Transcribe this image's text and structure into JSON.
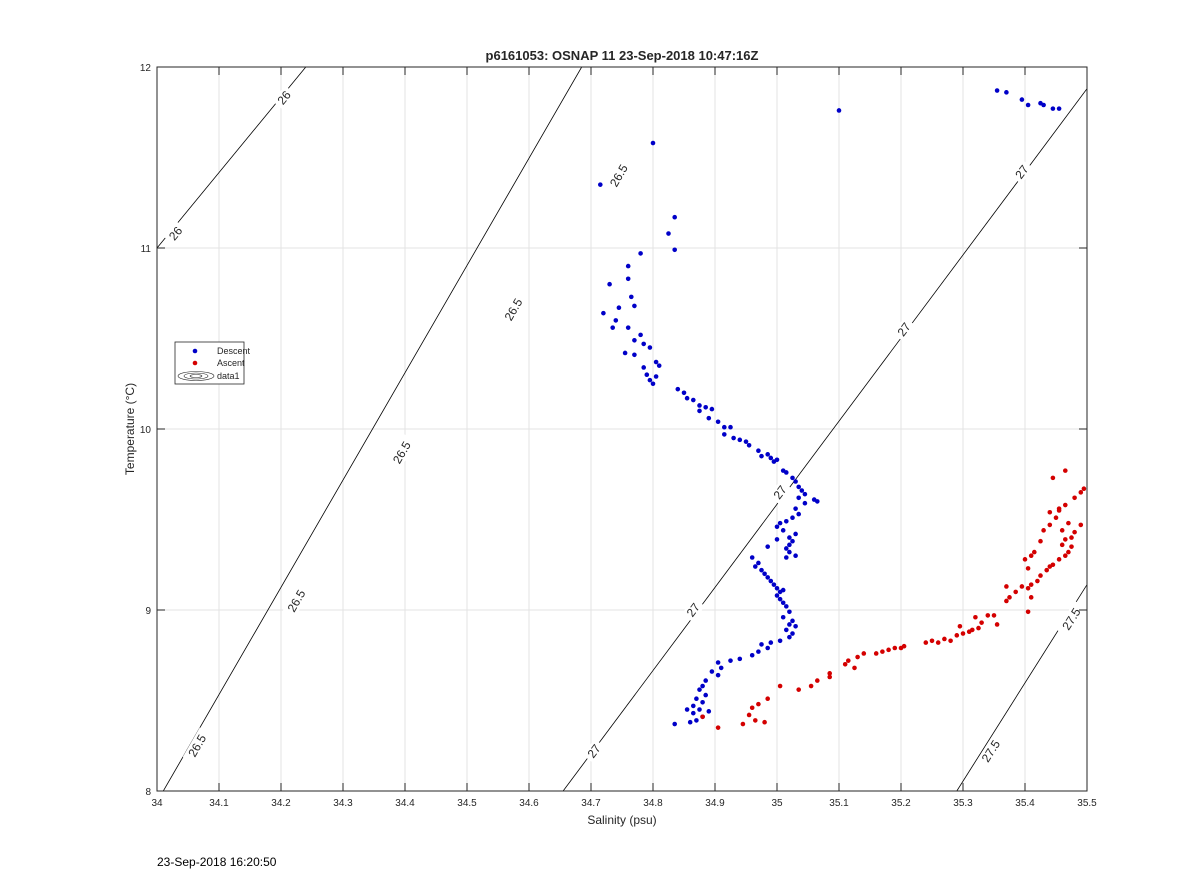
{
  "window_title": "p6161053: OSNAP 11 23-Sep-2018 10:47:16Z",
  "footer_timestamp": "23-Sep-2018 16:20:50",
  "chart_data": {
    "type": "scatter",
    "title": "p6161053: OSNAP 11 23-Sep-2018 10:47:16Z",
    "xlabel": "Salinity (psu)",
    "ylabel": "Temperature (°C)",
    "xlim": [
      34,
      35.5
    ],
    "ylim": [
      8,
      12
    ],
    "xticks": [
      "34",
      "34.1",
      "34.2",
      "34.3",
      "34.4",
      "34.5",
      "34.6",
      "34.7",
      "34.8",
      "34.9",
      "35",
      "35.1",
      "35.2",
      "35.3",
      "35.4",
      "35.5"
    ],
    "yticks": [
      "8",
      "9",
      "10",
      "11",
      "12"
    ],
    "grid": true,
    "legend_position": "left",
    "legend": [
      {
        "label": "Descent",
        "color": "#0000c8",
        "marker": "dot"
      },
      {
        "label": "Ascent",
        "color": "#d40000",
        "marker": "dot"
      },
      {
        "label": "data1",
        "marker": "contour"
      }
    ],
    "density_contours": {
      "levels": [
        "26",
        "26.5",
        "27",
        "27.5"
      ],
      "color": "#000000",
      "lines": [
        {
          "level": "26",
          "p1": [
            34.0,
            11.0
          ],
          "p2": [
            34.24,
            12.0
          ],
          "labels": [
            [
              34.03,
              11.08
            ],
            [
              34.205,
              11.83
            ]
          ]
        },
        {
          "level": "26.5",
          "p1": [
            34.0,
            7.94
          ],
          "p2": [
            34.685,
            12.0
          ],
          "labels": [
            [
              34.065,
              8.25
            ],
            [
              34.225,
              9.05
            ],
            [
              34.395,
              9.87
            ],
            [
              34.575,
              10.66
            ],
            [
              34.745,
              11.4
            ]
          ]
        },
        {
          "level": "27",
          "p1": [
            34.655,
            8.0
          ],
          "p2": [
            35.5,
            11.88
          ],
          "labels": [
            [
              34.705,
              8.22
            ],
            [
              34.865,
              9.0
            ],
            [
              35.005,
              9.65
            ],
            [
              35.205,
              10.55
            ],
            [
              35.395,
              11.42
            ]
          ]
        },
        {
          "level": "27.5",
          "p1": [
            35.29,
            8.0
          ],
          "p2": [
            35.5,
            9.14
          ],
          "labels": [
            [
              35.345,
              8.22
            ],
            [
              35.475,
              8.95
            ]
          ]
        }
      ]
    },
    "series": [
      {
        "name": "Descent",
        "color": "#0000c8",
        "points": [
          [
            35.355,
            11.87
          ],
          [
            35.37,
            11.86
          ],
          [
            35.395,
            11.82
          ],
          [
            35.405,
            11.79
          ],
          [
            35.425,
            11.8
          ],
          [
            35.43,
            11.79
          ],
          [
            35.445,
            11.77
          ],
          [
            35.455,
            11.77
          ],
          [
            35.1,
            11.76
          ],
          [
            34.8,
            11.58
          ],
          [
            34.715,
            11.35
          ],
          [
            34.835,
            11.17
          ],
          [
            34.825,
            11.08
          ],
          [
            34.835,
            10.99
          ],
          [
            34.78,
            10.97
          ],
          [
            34.76,
            10.9
          ],
          [
            34.76,
            10.83
          ],
          [
            34.73,
            10.8
          ],
          [
            34.765,
            10.73
          ],
          [
            34.77,
            10.68
          ],
          [
            34.745,
            10.67
          ],
          [
            34.72,
            10.64
          ],
          [
            34.74,
            10.6
          ],
          [
            34.76,
            10.56
          ],
          [
            34.735,
            10.56
          ],
          [
            34.78,
            10.52
          ],
          [
            34.77,
            10.49
          ],
          [
            34.785,
            10.47
          ],
          [
            34.795,
            10.45
          ],
          [
            34.755,
            10.42
          ],
          [
            34.77,
            10.41
          ],
          [
            34.805,
            10.37
          ],
          [
            34.81,
            10.35
          ],
          [
            34.785,
            10.34
          ],
          [
            34.79,
            10.3
          ],
          [
            34.805,
            10.29
          ],
          [
            34.795,
            10.27
          ],
          [
            34.8,
            10.25
          ],
          [
            34.84,
            10.22
          ],
          [
            34.85,
            10.2
          ],
          [
            34.855,
            10.17
          ],
          [
            34.865,
            10.16
          ],
          [
            34.875,
            10.13
          ],
          [
            34.885,
            10.12
          ],
          [
            34.895,
            10.11
          ],
          [
            34.875,
            10.1
          ],
          [
            34.89,
            10.06
          ],
          [
            34.905,
            10.04
          ],
          [
            34.915,
            10.01
          ],
          [
            34.925,
            10.01
          ],
          [
            34.915,
            9.97
          ],
          [
            34.93,
            9.95
          ],
          [
            34.94,
            9.94
          ],
          [
            34.95,
            9.93
          ],
          [
            34.955,
            9.91
          ],
          [
            34.97,
            9.88
          ],
          [
            34.985,
            9.86
          ],
          [
            34.975,
            9.85
          ],
          [
            34.99,
            9.84
          ],
          [
            35.0,
            9.83
          ],
          [
            34.995,
            9.82
          ],
          [
            35.01,
            9.77
          ],
          [
            35.015,
            9.76
          ],
          [
            35.025,
            9.73
          ],
          [
            35.03,
            9.71
          ],
          [
            35.035,
            9.68
          ],
          [
            35.04,
            9.66
          ],
          [
            35.045,
            9.64
          ],
          [
            35.035,
            9.62
          ],
          [
            35.06,
            9.61
          ],
          [
            35.065,
            9.6
          ],
          [
            35.045,
            9.59
          ],
          [
            35.03,
            9.56
          ],
          [
            35.035,
            9.53
          ],
          [
            35.025,
            9.51
          ],
          [
            35.015,
            9.49
          ],
          [
            35.005,
            9.48
          ],
          [
            35.0,
            9.46
          ],
          [
            35.01,
            9.44
          ],
          [
            35.03,
            9.42
          ],
          [
            35.02,
            9.4
          ],
          [
            35.0,
            9.39
          ],
          [
            35.025,
            9.38
          ],
          [
            35.02,
            9.36
          ],
          [
            35.015,
            9.34
          ],
          [
            34.985,
            9.35
          ],
          [
            35.02,
            9.32
          ],
          [
            35.03,
            9.3
          ],
          [
            35.015,
            9.29
          ],
          [
            34.96,
            9.29
          ],
          [
            34.97,
            9.26
          ],
          [
            34.965,
            9.24
          ],
          [
            34.975,
            9.22
          ],
          [
            34.98,
            9.2
          ],
          [
            34.985,
            9.18
          ],
          [
            34.99,
            9.16
          ],
          [
            34.995,
            9.14
          ],
          [
            35.0,
            9.12
          ],
          [
            35.01,
            9.11
          ],
          [
            35.005,
            9.1
          ],
          [
            35.0,
            9.08
          ],
          [
            35.005,
            9.06
          ],
          [
            35.01,
            9.04
          ],
          [
            35.015,
            9.02
          ],
          [
            35.02,
            8.99
          ],
          [
            35.01,
            8.96
          ],
          [
            35.025,
            8.94
          ],
          [
            35.02,
            8.92
          ],
          [
            35.03,
            8.91
          ],
          [
            35.015,
            8.89
          ],
          [
            35.025,
            8.87
          ],
          [
            35.02,
            8.85
          ],
          [
            35.005,
            8.83
          ],
          [
            34.99,
            8.82
          ],
          [
            34.975,
            8.81
          ],
          [
            34.985,
            8.79
          ],
          [
            34.97,
            8.77
          ],
          [
            34.96,
            8.75
          ],
          [
            34.94,
            8.73
          ],
          [
            34.925,
            8.72
          ],
          [
            34.905,
            8.71
          ],
          [
            34.91,
            8.68
          ],
          [
            34.895,
            8.66
          ],
          [
            34.905,
            8.64
          ],
          [
            34.885,
            8.61
          ],
          [
            34.88,
            8.58
          ],
          [
            34.875,
            8.56
          ],
          [
            34.885,
            8.53
          ],
          [
            34.87,
            8.51
          ],
          [
            34.88,
            8.49
          ],
          [
            34.865,
            8.47
          ],
          [
            34.875,
            8.45
          ],
          [
            34.855,
            8.45
          ],
          [
            34.89,
            8.44
          ],
          [
            34.865,
            8.43
          ],
          [
            34.88,
            8.41
          ],
          [
            34.87,
            8.39
          ],
          [
            34.86,
            8.38
          ],
          [
            34.835,
            8.37
          ]
        ]
      },
      {
        "name": "Ascent",
        "color": "#d40000",
        "points": [
          [
            34.905,
            8.35
          ],
          [
            34.88,
            8.41
          ],
          [
            34.945,
            8.37
          ],
          [
            34.965,
            8.39
          ],
          [
            34.98,
            8.38
          ],
          [
            34.955,
            8.42
          ],
          [
            34.96,
            8.46
          ],
          [
            34.97,
            8.48
          ],
          [
            34.985,
            8.51
          ],
          [
            35.005,
            8.58
          ],
          [
            35.035,
            8.56
          ],
          [
            35.055,
            8.58
          ],
          [
            35.065,
            8.61
          ],
          [
            35.085,
            8.63
          ],
          [
            35.085,
            8.65
          ],
          [
            35.11,
            8.7
          ],
          [
            35.115,
            8.72
          ],
          [
            35.125,
            8.68
          ],
          [
            35.13,
            8.74
          ],
          [
            35.14,
            8.76
          ],
          [
            35.16,
            8.76
          ],
          [
            35.17,
            8.77
          ],
          [
            35.18,
            8.78
          ],
          [
            35.19,
            8.79
          ],
          [
            35.2,
            8.79
          ],
          [
            35.205,
            8.8
          ],
          [
            35.24,
            8.82
          ],
          [
            35.25,
            8.83
          ],
          [
            35.26,
            8.82
          ],
          [
            35.27,
            8.84
          ],
          [
            35.28,
            8.83
          ],
          [
            35.29,
            8.86
          ],
          [
            35.3,
            8.87
          ],
          [
            35.31,
            8.88
          ],
          [
            35.315,
            8.89
          ],
          [
            35.295,
            8.91
          ],
          [
            35.325,
            8.9
          ],
          [
            35.33,
            8.93
          ],
          [
            35.32,
            8.96
          ],
          [
            35.34,
            8.97
          ],
          [
            35.35,
            8.97
          ],
          [
            35.355,
            8.92
          ],
          [
            35.37,
            9.05
          ],
          [
            35.375,
            9.07
          ],
          [
            35.385,
            9.1
          ],
          [
            35.395,
            9.13
          ],
          [
            35.405,
            9.12
          ],
          [
            35.41,
            9.14
          ],
          [
            35.37,
            9.13
          ],
          [
            35.405,
            8.99
          ],
          [
            35.41,
            9.07
          ],
          [
            35.42,
            9.16
          ],
          [
            35.425,
            9.19
          ],
          [
            35.435,
            9.22
          ],
          [
            35.44,
            9.24
          ],
          [
            35.445,
            9.25
          ],
          [
            35.455,
            9.28
          ],
          [
            35.465,
            9.3
          ],
          [
            35.47,
            9.32
          ],
          [
            35.475,
            9.35
          ],
          [
            35.46,
            9.36
          ],
          [
            35.465,
            9.39
          ],
          [
            35.475,
            9.4
          ],
          [
            35.48,
            9.43
          ],
          [
            35.49,
            9.47
          ],
          [
            35.44,
            9.47
          ],
          [
            35.45,
            9.51
          ],
          [
            35.455,
            9.56
          ],
          [
            35.465,
            9.58
          ],
          [
            35.48,
            9.62
          ],
          [
            35.49,
            9.65
          ],
          [
            35.495,
            9.67
          ],
          [
            35.465,
            9.77
          ],
          [
            35.445,
            9.73
          ],
          [
            35.41,
            9.3
          ],
          [
            35.4,
            9.28
          ],
          [
            35.405,
            9.23
          ],
          [
            35.415,
            9.32
          ],
          [
            35.425,
            9.38
          ],
          [
            35.43,
            9.44
          ],
          [
            35.44,
            9.54
          ],
          [
            35.455,
            9.55
          ],
          [
            35.46,
            9.44
          ],
          [
            35.47,
            9.48
          ]
        ]
      }
    ]
  }
}
